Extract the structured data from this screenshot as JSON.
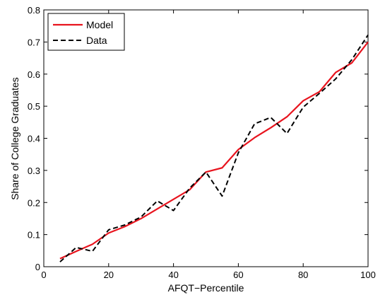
{
  "chart_data": {
    "type": "line",
    "xlabel": "AFQT−Percentile",
    "ylabel": "Share of College Graduates",
    "xlim": [
      0,
      100
    ],
    "ylim": [
      0,
      0.8
    ],
    "xticks": [
      0,
      20,
      40,
      60,
      80,
      100
    ],
    "yticks": [
      0,
      0.1,
      0.2,
      0.3,
      0.4,
      0.5,
      0.6,
      0.7,
      0.8
    ],
    "xtick_labels": [
      "0",
      "20",
      "40",
      "60",
      "80",
      "100"
    ],
    "ytick_labels": [
      "0",
      "0.1",
      "0.2",
      "0.3",
      "0.4",
      "0.5",
      "0.6",
      "0.7",
      "0.8"
    ],
    "grid": false,
    "legend_position": "top-left",
    "series": [
      {
        "name": "Model",
        "color": "#e8141e",
        "style": "solid",
        "x": [
          5,
          10,
          15,
          20,
          25,
          30,
          35,
          40,
          45,
          50,
          55,
          60,
          65,
          70,
          75,
          80,
          85,
          90,
          95,
          100
        ],
        "y": [
          0.025,
          0.048,
          0.07,
          0.105,
          0.125,
          0.15,
          0.18,
          0.21,
          0.24,
          0.295,
          0.308,
          0.365,
          0.402,
          0.433,
          0.467,
          0.517,
          0.545,
          0.605,
          0.635,
          0.7
        ]
      },
      {
        "name": "Data",
        "color": "#000000",
        "style": "dashed",
        "x": [
          5,
          10,
          15,
          20,
          25,
          30,
          35,
          40,
          45,
          50,
          55,
          60,
          65,
          70,
          75,
          80,
          85,
          90,
          95,
          100
        ],
        "y": [
          0.015,
          0.06,
          0.048,
          0.115,
          0.13,
          0.155,
          0.205,
          0.175,
          0.245,
          0.295,
          0.22,
          0.355,
          0.445,
          0.465,
          0.415,
          0.497,
          0.54,
          0.585,
          0.645,
          0.722
        ]
      }
    ]
  }
}
